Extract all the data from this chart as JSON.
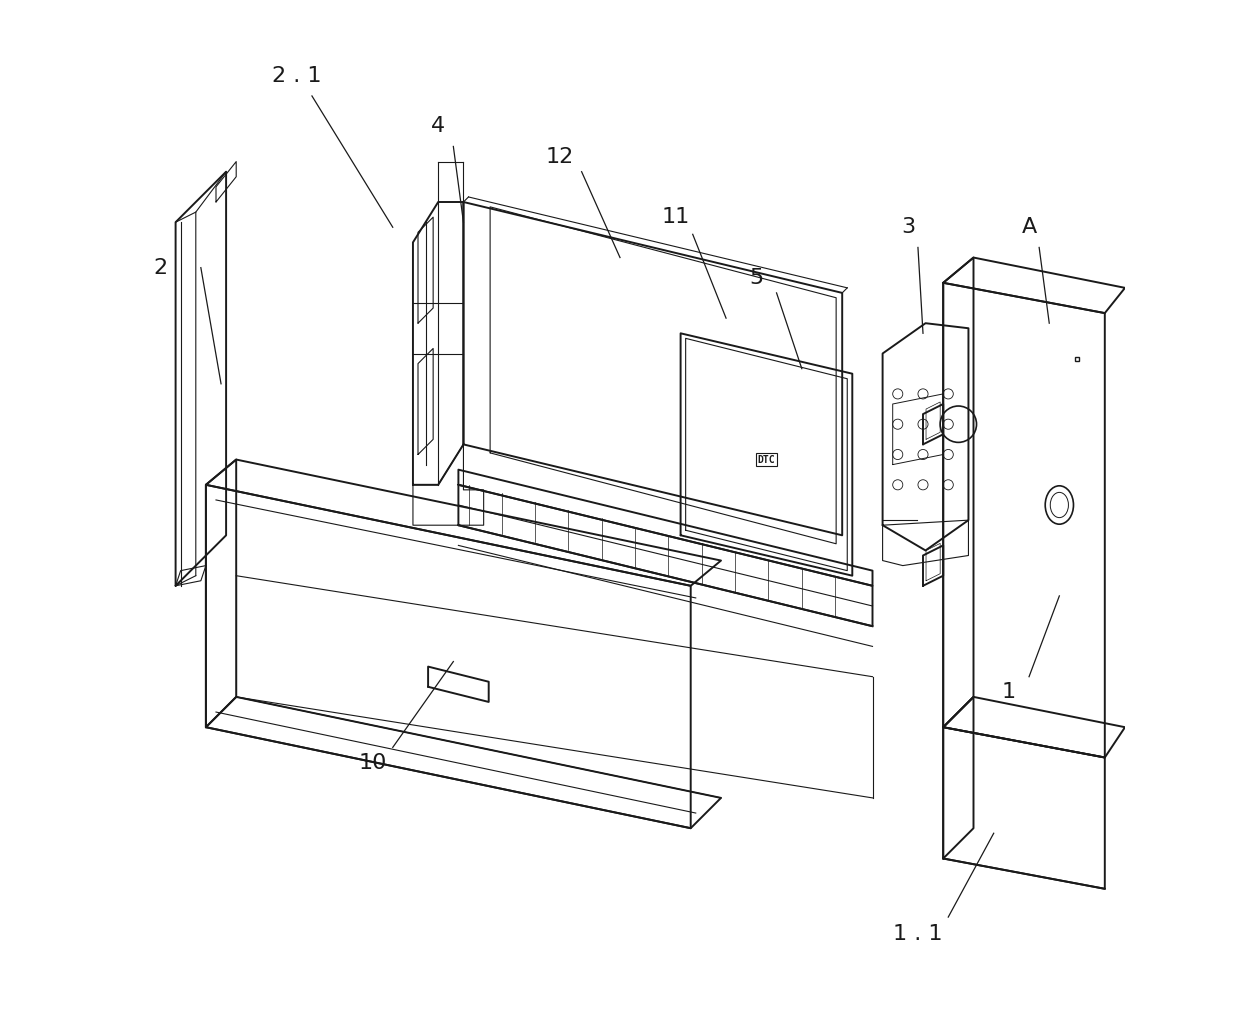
{
  "bg_color": "#ffffff",
  "line_color": "#1a1a1a",
  "line_width": 1.4,
  "thin_line": 0.8,
  "fig_width": 12.4,
  "fig_height": 10.1
}
